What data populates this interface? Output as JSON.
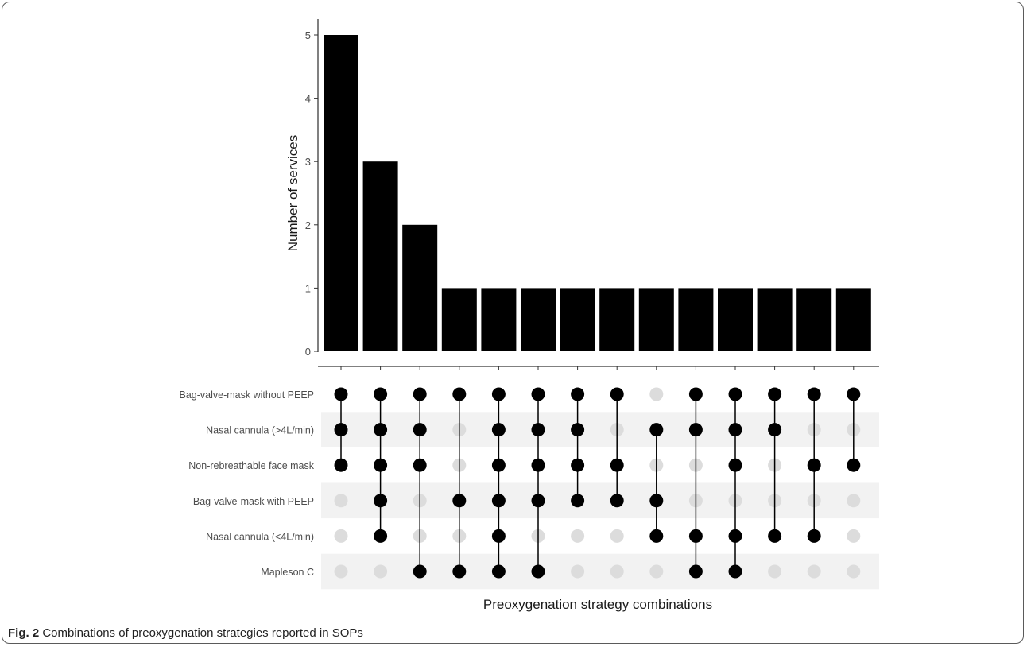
{
  "chart_data": {
    "type": "bar",
    "ylabel": "Number of services",
    "xlabel": "Preoxygenation strategy combinations",
    "ylim": [
      0,
      5
    ],
    "yticks": [
      0,
      1,
      2,
      3,
      4,
      5
    ],
    "values": [
      5,
      3,
      2,
      1,
      1,
      1,
      1,
      1,
      1,
      1,
      1,
      1,
      1,
      1
    ],
    "sets": [
      "Bag-valve-mask without PEEP",
      "Nasal cannula (>4L/min)",
      "Non-rebreathable face mask",
      "Bag-valve-mask with PEEP",
      "Nasal cannula (<4L/min)",
      "Mapleson C"
    ],
    "combinations": [
      [
        0,
        1,
        2
      ],
      [
        0,
        1,
        2,
        3,
        4
      ],
      [
        0,
        1,
        2,
        5
      ],
      [
        0,
        3,
        5
      ],
      [
        0,
        1,
        2,
        3,
        4,
        5
      ],
      [
        0,
        1,
        2,
        3,
        5
      ],
      [
        0,
        1,
        2,
        3
      ],
      [
        0,
        2,
        3
      ],
      [
        1,
        3,
        4
      ],
      [
        0,
        1,
        4,
        5
      ],
      [
        0,
        1,
        2,
        4,
        5
      ],
      [
        0,
        1,
        4
      ],
      [
        0,
        2,
        4
      ],
      [
        0,
        2
      ]
    ],
    "colors": {
      "bar": "#000000",
      "dot_on": "#000000",
      "dot_off": "#dcdcdc",
      "band": "#f2f2f2"
    }
  },
  "caption": {
    "label": "Fig. 2",
    "text": " Combinations of preoxygenation strategies reported in SOPs"
  }
}
